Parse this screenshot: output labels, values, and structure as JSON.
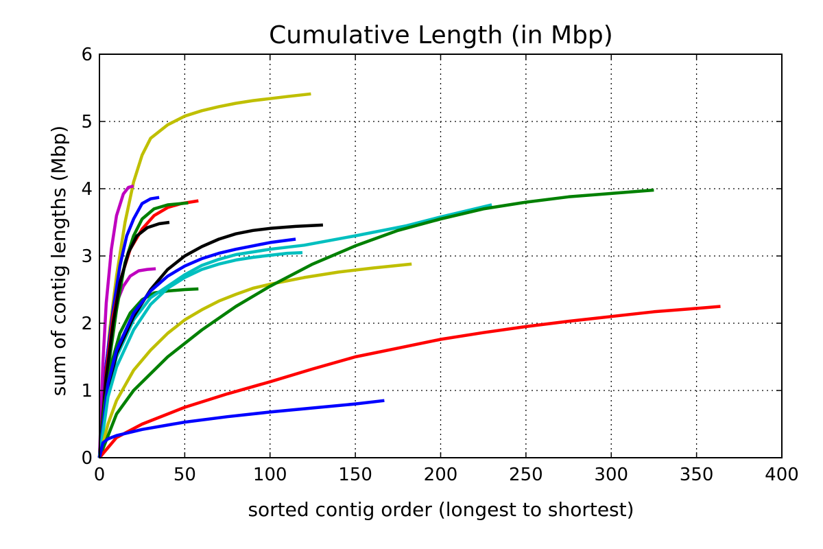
{
  "chart_data": {
    "type": "line",
    "title": "Cumulative Length (in Mbp)",
    "xlabel": "sorted contig order (longest to shortest)",
    "ylabel": "sum of contig lengths (Mbp)",
    "xlim": [
      0,
      400
    ],
    "ylim": [
      0,
      6
    ],
    "xticks": [
      0,
      50,
      100,
      150,
      200,
      250,
      300,
      350,
      400
    ],
    "yticks": [
      0,
      1,
      2,
      3,
      4,
      5,
      6
    ],
    "grid": true,
    "legend": "none",
    "series": [
      {
        "color": "#bfbf00",
        "points": [
          [
            0,
            0
          ],
          [
            3,
            1.0
          ],
          [
            6,
            1.9
          ],
          [
            10,
            2.7
          ],
          [
            15,
            3.5
          ],
          [
            20,
            4.1
          ],
          [
            25,
            4.5
          ],
          [
            30,
            4.75
          ],
          [
            40,
            4.95
          ],
          [
            50,
            5.08
          ],
          [
            60,
            5.16
          ],
          [
            70,
            5.22
          ],
          [
            80,
            5.27
          ],
          [
            90,
            5.31
          ],
          [
            100,
            5.34
          ],
          [
            110,
            5.37
          ],
          [
            124,
            5.41
          ]
        ]
      },
      {
        "color": "#bf00bf",
        "points": [
          [
            0,
            0
          ],
          [
            2,
            1.4
          ],
          [
            4,
            2.3
          ],
          [
            7,
            3.1
          ],
          [
            10,
            3.6
          ],
          [
            14,
            3.92
          ],
          [
            17,
            4.02
          ],
          [
            20,
            4.04
          ]
        ]
      },
      {
        "color": "#bf00bf",
        "points": [
          [
            0,
            0
          ],
          [
            3,
            1.2
          ],
          [
            6,
            1.8
          ],
          [
            10,
            2.3
          ],
          [
            14,
            2.55
          ],
          [
            18,
            2.7
          ],
          [
            23,
            2.78
          ],
          [
            28,
            2.8
          ],
          [
            33,
            2.81
          ]
        ]
      },
      {
        "color": "#0000ff",
        "points": [
          [
            0,
            0
          ],
          [
            4,
            1.4
          ],
          [
            8,
            2.2
          ],
          [
            12,
            2.85
          ],
          [
            16,
            3.3
          ],
          [
            20,
            3.55
          ],
          [
            25,
            3.78
          ],
          [
            30,
            3.85
          ],
          [
            35,
            3.87
          ]
        ]
      },
      {
        "color": "#ff0000",
        "points": [
          [
            0,
            0
          ],
          [
            4,
            1.3
          ],
          [
            8,
            2.1
          ],
          [
            13,
            2.7
          ],
          [
            18,
            3.1
          ],
          [
            25,
            3.4
          ],
          [
            32,
            3.6
          ],
          [
            40,
            3.72
          ],
          [
            48,
            3.78
          ],
          [
            58,
            3.82
          ]
        ]
      },
      {
        "color": "#008000",
        "points": [
          [
            0,
            0
          ],
          [
            5,
            1.3
          ],
          [
            10,
            2.2
          ],
          [
            15,
            2.9
          ],
          [
            20,
            3.3
          ],
          [
            25,
            3.55
          ],
          [
            32,
            3.7
          ],
          [
            40,
            3.76
          ],
          [
            52,
            3.79
          ]
        ]
      },
      {
        "color": "#000000",
        "points": [
          [
            0,
            0
          ],
          [
            4,
            1.2
          ],
          [
            8,
            2.0
          ],
          [
            12,
            2.6
          ],
          [
            17,
            3.05
          ],
          [
            22,
            3.3
          ],
          [
            28,
            3.42
          ],
          [
            35,
            3.48
          ],
          [
            41,
            3.5
          ]
        ]
      },
      {
        "color": "#008000",
        "points": [
          [
            0,
            0
          ],
          [
            3,
            0.8
          ],
          [
            7,
            1.4
          ],
          [
            12,
            1.85
          ],
          [
            18,
            2.15
          ],
          [
            25,
            2.35
          ],
          [
            32,
            2.45
          ],
          [
            40,
            2.48
          ],
          [
            50,
            2.5
          ],
          [
            58,
            2.51
          ]
        ]
      },
      {
        "color": "#00bfbf",
        "points": [
          [
            0,
            0
          ],
          [
            5,
            1.0
          ],
          [
            10,
            1.5
          ],
          [
            20,
            2.05
          ],
          [
            30,
            2.38
          ],
          [
            40,
            2.55
          ],
          [
            50,
            2.72
          ],
          [
            60,
            2.86
          ],
          [
            70,
            2.95
          ],
          [
            80,
            3.02
          ],
          [
            100,
            3.1
          ],
          [
            120,
            3.16
          ],
          [
            150,
            3.3
          ],
          [
            180,
            3.45
          ],
          [
            200,
            3.58
          ],
          [
            230,
            3.76
          ]
        ]
      },
      {
        "color": "#000000",
        "points": [
          [
            0,
            0
          ],
          [
            5,
            1.0
          ],
          [
            10,
            1.55
          ],
          [
            20,
            2.1
          ],
          [
            30,
            2.5
          ],
          [
            40,
            2.8
          ],
          [
            50,
            3.0
          ],
          [
            60,
            3.14
          ],
          [
            70,
            3.25
          ],
          [
            80,
            3.33
          ],
          [
            90,
            3.38
          ],
          [
            100,
            3.41
          ],
          [
            115,
            3.44
          ],
          [
            131,
            3.46
          ]
        ]
      },
      {
        "color": "#0000ff",
        "points": [
          [
            0,
            0
          ],
          [
            5,
            1.1
          ],
          [
            10,
            1.6
          ],
          [
            20,
            2.15
          ],
          [
            30,
            2.48
          ],
          [
            40,
            2.7
          ],
          [
            50,
            2.85
          ],
          [
            60,
            2.96
          ],
          [
            70,
            3.04
          ],
          [
            80,
            3.1
          ],
          [
            90,
            3.15
          ],
          [
            100,
            3.2
          ],
          [
            115,
            3.25
          ]
        ]
      },
      {
        "color": "#00bfbf",
        "points": [
          [
            0,
            0
          ],
          [
            5,
            0.9
          ],
          [
            10,
            1.35
          ],
          [
            20,
            1.9
          ],
          [
            30,
            2.28
          ],
          [
            40,
            2.52
          ],
          [
            50,
            2.68
          ],
          [
            60,
            2.8
          ],
          [
            70,
            2.88
          ],
          [
            80,
            2.94
          ],
          [
            90,
            2.98
          ],
          [
            100,
            3.01
          ],
          [
            110,
            3.04
          ],
          [
            119,
            3.05
          ]
        ]
      },
      {
        "color": "#bfbf00",
        "points": [
          [
            0,
            0
          ],
          [
            5,
            0.5
          ],
          [
            10,
            0.85
          ],
          [
            20,
            1.3
          ],
          [
            30,
            1.6
          ],
          [
            40,
            1.85
          ],
          [
            50,
            2.05
          ],
          [
            60,
            2.2
          ],
          [
            70,
            2.33
          ],
          [
            80,
            2.43
          ],
          [
            90,
            2.52
          ],
          [
            100,
            2.58
          ],
          [
            120,
            2.68
          ],
          [
            140,
            2.76
          ],
          [
            160,
            2.82
          ],
          [
            183,
            2.88
          ]
        ]
      },
      {
        "color": "#008000",
        "points": [
          [
            0,
            0
          ],
          [
            10,
            0.65
          ],
          [
            20,
            1.0
          ],
          [
            40,
            1.5
          ],
          [
            60,
            1.9
          ],
          [
            80,
            2.25
          ],
          [
            100,
            2.55
          ],
          [
            125,
            2.88
          ],
          [
            150,
            3.15
          ],
          [
            175,
            3.38
          ],
          [
            200,
            3.55
          ],
          [
            225,
            3.7
          ],
          [
            250,
            3.8
          ],
          [
            275,
            3.88
          ],
          [
            300,
            3.93
          ],
          [
            325,
            3.98
          ]
        ]
      },
      {
        "color": "#ff0000",
        "points": [
          [
            0,
            0
          ],
          [
            10,
            0.3
          ],
          [
            25,
            0.5
          ],
          [
            50,
            0.75
          ],
          [
            75,
            0.95
          ],
          [
            100,
            1.13
          ],
          [
            125,
            1.32
          ],
          [
            150,
            1.5
          ],
          [
            175,
            1.63
          ],
          [
            200,
            1.76
          ],
          [
            225,
            1.86
          ],
          [
            250,
            1.95
          ],
          [
            275,
            2.03
          ],
          [
            300,
            2.1
          ],
          [
            325,
            2.17
          ],
          [
            345,
            2.21
          ],
          [
            364,
            2.25
          ]
        ]
      },
      {
        "color": "#0000ff",
        "points": [
          [
            0,
            0
          ],
          [
            2,
            0.22
          ],
          [
            5,
            0.28
          ],
          [
            10,
            0.33
          ],
          [
            25,
            0.42
          ],
          [
            50,
            0.53
          ],
          [
            75,
            0.61
          ],
          [
            100,
            0.68
          ],
          [
            125,
            0.74
          ],
          [
            150,
            0.8
          ],
          [
            167,
            0.85
          ]
        ]
      }
    ]
  }
}
